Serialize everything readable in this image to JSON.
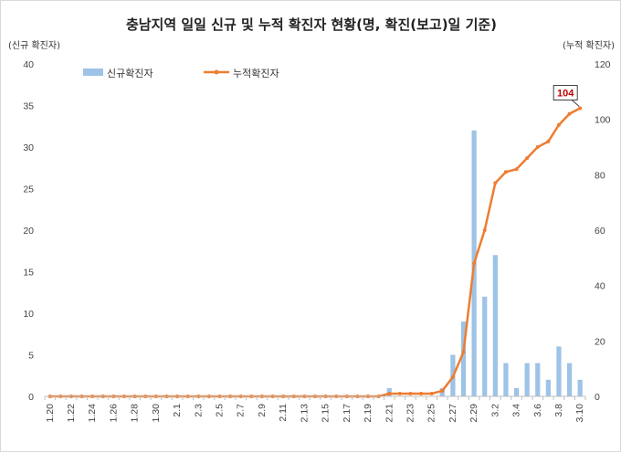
{
  "chart_data": {
    "type": "bar",
    "title": "충남지역 일일 신규 및 누적 확진자 현황(명, 확진(보고)일 기준)",
    "ylabel": "(신규 확진자)",
    "y2label": "(누적 확진자)",
    "ylim": [
      0,
      40
    ],
    "y2lim": [
      0,
      120
    ],
    "yticks": [
      "0",
      "5",
      "10",
      "15",
      "20",
      "25",
      "30",
      "35",
      "40"
    ],
    "y2ticks": [
      "0",
      "20",
      "40",
      "60",
      "80",
      "100",
      "120"
    ],
    "categories": [
      "1.20",
      "1.21",
      "1.22",
      "1.23",
      "1.24",
      "1.25",
      "1.26",
      "1.27",
      "1.28",
      "1.29",
      "1.30",
      "1.31",
      "2.1",
      "2.2",
      "2.3",
      "2.4",
      "2.5",
      "2.6",
      "2.7",
      "2.8",
      "2.9",
      "2.10",
      "2.11",
      "2.12",
      "2.13",
      "2.14",
      "2.15",
      "2.16",
      "2.17",
      "2.18",
      "2.19",
      "2.20",
      "2.21",
      "2.22",
      "2.23",
      "2.24",
      "2.25",
      "2.26",
      "2.27",
      "2.28",
      "2.29",
      "3.1",
      "3.2",
      "3.3",
      "3.4",
      "3.5",
      "3.6",
      "3.7",
      "3.8",
      "3.9",
      "3.10"
    ],
    "tick_labels": [
      "1.20",
      "1.22",
      "1.24",
      "1.26",
      "1.28",
      "1.30",
      "2.1",
      "2.3",
      "2.5",
      "2.7",
      "2.9",
      "2.11",
      "2.13",
      "2.15",
      "2.17",
      "2.19",
      "2.21",
      "2.23",
      "2.25",
      "2.27",
      "2.29",
      "3.2",
      "3.4",
      "3.6",
      "3.8",
      "3.10"
    ],
    "series": [
      {
        "name": "신규확진자",
        "type": "bar",
        "axis": "left",
        "color": "#9dc3e6",
        "values": [
          0,
          0,
          0,
          0,
          0,
          0,
          0,
          0,
          0,
          0,
          0,
          0,
          0,
          0,
          0,
          0,
          0,
          0,
          0,
          0,
          0,
          0,
          0,
          0,
          0,
          0,
          0,
          0,
          0,
          0,
          0,
          0,
          1,
          0,
          0,
          0,
          0,
          1,
          5,
          9,
          32,
          12,
          17,
          4,
          1,
          4,
          4,
          2,
          6,
          4,
          2
        ]
      },
      {
        "name": "누적확진자",
        "type": "line",
        "axis": "right",
        "color": "#ed7d31",
        "values": [
          0,
          0,
          0,
          0,
          0,
          0,
          0,
          0,
          0,
          0,
          0,
          0,
          0,
          0,
          0,
          0,
          0,
          0,
          0,
          0,
          0,
          0,
          0,
          0,
          0,
          0,
          0,
          0,
          0,
          0,
          0,
          0,
          1,
          1,
          1,
          1,
          1,
          2,
          7,
          16,
          48,
          60,
          77,
          81,
          82,
          86,
          90,
          92,
          98,
          102,
          104
        ]
      }
    ],
    "annotation": {
      "label": "104",
      "category": "3.10"
    },
    "grid": false,
    "legend": "top-left"
  }
}
